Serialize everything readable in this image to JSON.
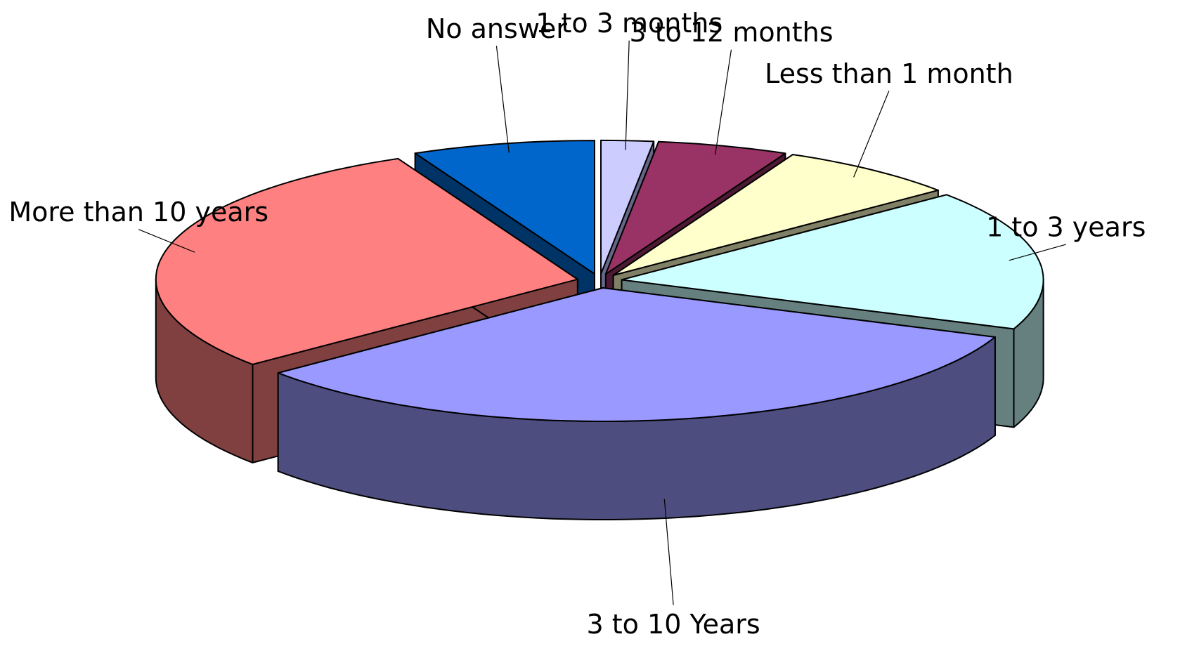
{
  "chart_data": {
    "type": "pie",
    "categories": [
      "1 to 3 months",
      "3 to 12 months",
      "Less than 1 month",
      "1 to 3 years",
      "3 to 10 Years",
      "More than 10 years",
      "No answer"
    ],
    "values": [
      2,
      5,
      7,
      17,
      33,
      29,
      7
    ],
    "colors": [
      "#ccccff",
      "#993366",
      "#ffffcc",
      "#ccffff",
      "#9999ff",
      "#ff8080",
      "#0066cc"
    ],
    "side_colors": [
      "#666688",
      "#4d1a33",
      "#808066",
      "#668080",
      "#4d4d80",
      "#804040",
      "#003366"
    ]
  }
}
